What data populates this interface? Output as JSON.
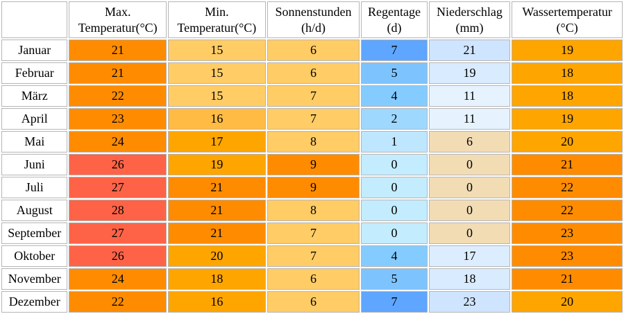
{
  "headers": [
    {
      "line1": "Max.",
      "line2": "Temperatur(°C)"
    },
    {
      "line1": "Min.",
      "line2": "Temperatur(°C)"
    },
    {
      "line1": "Sonnenstunden",
      "line2": "(h/d)"
    },
    {
      "line1": "Regentage",
      "line2": "(d)"
    },
    {
      "line1": "Niederschlag",
      "line2": "(mm)"
    },
    {
      "line1": "Wassertemperatur",
      "line2": "(°C)"
    }
  ],
  "rows": [
    {
      "month": "Januar",
      "values": [
        "21",
        "15",
        "6",
        "7",
        "21",
        "19"
      ],
      "colors": [
        "#ff8c00",
        "#ffcc66",
        "#ffcc66",
        "#5ea6ff",
        "#cfe4ff",
        "#ffa500"
      ]
    },
    {
      "month": "Februar",
      "values": [
        "21",
        "15",
        "6",
        "5",
        "19",
        "18"
      ],
      "colors": [
        "#ff8c00",
        "#ffcc66",
        "#ffcc66",
        "#7dc4ff",
        "#d9ebff",
        "#ffa500"
      ]
    },
    {
      "month": "März",
      "values": [
        "22",
        "15",
        "7",
        "4",
        "11",
        "18"
      ],
      "colors": [
        "#ff8c00",
        "#ffcc66",
        "#ffcc66",
        "#84ccff",
        "#e6f3ff",
        "#ffa500"
      ]
    },
    {
      "month": "April",
      "values": [
        "23",
        "16",
        "7",
        "2",
        "11",
        "19"
      ],
      "colors": [
        "#ff8c00",
        "#ffbb44",
        "#ffcc66",
        "#9fd8ff",
        "#e6f3ff",
        "#ffa500"
      ]
    },
    {
      "month": "Mai",
      "values": [
        "24",
        "17",
        "8",
        "1",
        "6",
        "20"
      ],
      "colors": [
        "#ff8c00",
        "#ffa500",
        "#ffcc66",
        "#bfe6ff",
        "#f2dcb4",
        "#ffa500"
      ]
    },
    {
      "month": "Juni",
      "values": [
        "26",
        "19",
        "9",
        "0",
        "0",
        "21"
      ],
      "colors": [
        "#ff6347",
        "#ffa500",
        "#ff8c00",
        "#c4ecff",
        "#f2dcb4",
        "#ff8c00"
      ]
    },
    {
      "month": "Juli",
      "values": [
        "27",
        "21",
        "9",
        "0",
        "0",
        "22"
      ],
      "colors": [
        "#ff6347",
        "#ff8c00",
        "#ff8c00",
        "#c4ecff",
        "#f2dcb4",
        "#ff8c00"
      ]
    },
    {
      "month": "August",
      "values": [
        "28",
        "21",
        "8",
        "0",
        "0",
        "22"
      ],
      "colors": [
        "#ff6347",
        "#ff8c00",
        "#ffcc66",
        "#c4ecff",
        "#f2dcb4",
        "#ff8c00"
      ]
    },
    {
      "month": "September",
      "values": [
        "27",
        "21",
        "7",
        "0",
        "0",
        "23"
      ],
      "colors": [
        "#ff6347",
        "#ff8c00",
        "#ffcc66",
        "#c4ecff",
        "#f2dcb4",
        "#ff8c00"
      ]
    },
    {
      "month": "Oktober",
      "values": [
        "26",
        "20",
        "7",
        "4",
        "17",
        "23"
      ],
      "colors": [
        "#ff6347",
        "#ffa500",
        "#ffcc66",
        "#84ccff",
        "#dcedff",
        "#ff8c00"
      ]
    },
    {
      "month": "November",
      "values": [
        "24",
        "18",
        "6",
        "5",
        "18",
        "21"
      ],
      "colors": [
        "#ff8c00",
        "#ffa500",
        "#ffcc66",
        "#7dc4ff",
        "#d9ebff",
        "#ff8c00"
      ]
    },
    {
      "month": "Dezember",
      "values": [
        "22",
        "16",
        "6",
        "7",
        "23",
        "20"
      ],
      "colors": [
        "#ff8c00",
        "#ffa500",
        "#ffcc66",
        "#5ea6ff",
        "#cfe4ff",
        "#ffa500"
      ]
    }
  ]
}
